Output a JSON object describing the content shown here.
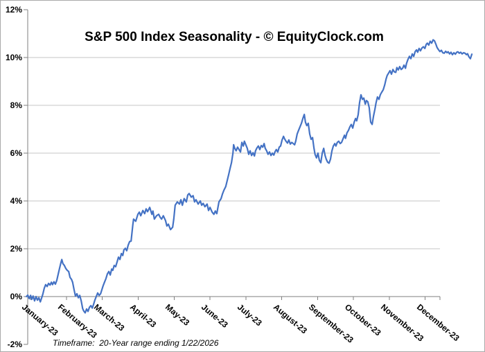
{
  "chart_data": {
    "type": "line",
    "title": "S&P 500 Index Seasonality - © EquityClock.com",
    "footnote": "Timeframe:  20-Year range ending 1/22/2026",
    "y_axis": {
      "unit": "%",
      "min": -2,
      "max": 12,
      "step": 2,
      "tick_labels": [
        "12%",
        "10%",
        "8%",
        "6%",
        "4%",
        "2%",
        "0%",
        "-2%"
      ],
      "gridline_levels": [
        10,
        8,
        6,
        4,
        2
      ],
      "grid": "horizontal only"
    },
    "x_axis": {
      "unit": "months since start of January-23 (data runs ~0 to 12.3)",
      "tick_labels": [
        "January-23",
        "February-23",
        "March-23",
        "April-23",
        "May-23",
        "June-23",
        "July-23",
        "August-23",
        "September-23",
        "October-23",
        "November-23",
        "December-23"
      ],
      "label_rotation_deg": 40,
      "axis_cross_level": 0
    },
    "legend": "none",
    "series": [
      {
        "color": "#4472C4",
        "x_unit": "months",
        "y_unit": "percent",
        "points": [
          [
            -0.12,
            0.0
          ],
          [
            -0.08,
            0.06
          ],
          [
            -0.04,
            -0.08
          ],
          [
            0.0,
            0.05
          ],
          [
            0.03,
            -0.12
          ],
          [
            0.07,
            0.02
          ],
          [
            0.11,
            -0.18
          ],
          [
            0.15,
            0.0
          ],
          [
            0.19,
            -0.15
          ],
          [
            0.23,
            -0.05
          ],
          [
            0.27,
            -0.22
          ],
          [
            0.31,
            -0.05
          ],
          [
            0.34,
            0.1
          ],
          [
            0.38,
            0.35
          ],
          [
            0.42,
            0.5
          ],
          [
            0.46,
            0.42
          ],
          [
            0.5,
            0.55
          ],
          [
            0.54,
            0.48
          ],
          [
            0.58,
            0.6
          ],
          [
            0.61,
            0.5
          ],
          [
            0.65,
            0.62
          ],
          [
            0.69,
            0.52
          ],
          [
            0.73,
            0.68
          ],
          [
            0.77,
            0.95
          ],
          [
            0.81,
            1.2
          ],
          [
            0.85,
            1.45
          ],
          [
            0.87,
            1.55
          ],
          [
            0.9,
            1.38
          ],
          [
            0.94,
            1.3
          ],
          [
            0.98,
            1.18
          ],
          [
            1.02,
            1.1
          ],
          [
            1.06,
            1.05
          ],
          [
            1.1,
            0.8
          ],
          [
            1.14,
            0.72
          ],
          [
            1.17,
            0.6
          ],
          [
            1.21,
            0.3
          ],
          [
            1.25,
            0.02
          ],
          [
            1.29,
            0.12
          ],
          [
            1.33,
            -0.05
          ],
          [
            1.37,
            0.05
          ],
          [
            1.41,
            -0.18
          ],
          [
            1.45,
            -0.5
          ],
          [
            1.48,
            -0.6
          ],
          [
            1.52,
            -0.68
          ],
          [
            1.56,
            -0.52
          ],
          [
            1.6,
            -0.62
          ],
          [
            1.64,
            -0.45
          ],
          [
            1.68,
            -0.38
          ],
          [
            1.72,
            -0.48
          ],
          [
            1.75,
            -0.35
          ],
          [
            1.79,
            -0.15
          ],
          [
            1.83,
            0.0
          ],
          [
            1.87,
            0.15
          ],
          [
            1.91,
            0.05
          ],
          [
            1.95,
            0.12
          ],
          [
            1.99,
            0.3
          ],
          [
            2.02,
            0.45
          ],
          [
            2.06,
            0.6
          ],
          [
            2.1,
            0.75
          ],
          [
            2.14,
            0.95
          ],
          [
            2.18,
            1.05
          ],
          [
            2.22,
            0.9
          ],
          [
            2.26,
            1.15
          ],
          [
            2.29,
            1.1
          ],
          [
            2.33,
            1.3
          ],
          [
            2.37,
            1.25
          ],
          [
            2.41,
            1.45
          ],
          [
            2.45,
            1.65
          ],
          [
            2.49,
            1.55
          ],
          [
            2.53,
            1.8
          ],
          [
            2.57,
            1.72
          ],
          [
            2.6,
            1.95
          ],
          [
            2.64,
            2.02
          ],
          [
            2.68,
            1.92
          ],
          [
            2.72,
            2.15
          ],
          [
            2.76,
            2.3
          ],
          [
            2.8,
            2.32
          ],
          [
            2.85,
            3.0
          ],
          [
            2.87,
            3.24
          ],
          [
            2.93,
            3.15
          ],
          [
            2.99,
            3.44
          ],
          [
            3.03,
            3.53
          ],
          [
            3.07,
            3.38
          ],
          [
            3.13,
            3.6
          ],
          [
            3.18,
            3.47
          ],
          [
            3.22,
            3.67
          ],
          [
            3.26,
            3.55
          ],
          [
            3.32,
            3.73
          ],
          [
            3.38,
            3.44
          ],
          [
            3.41,
            3.58
          ],
          [
            3.45,
            3.24
          ],
          [
            3.51,
            3.38
          ],
          [
            3.57,
            3.44
          ],
          [
            3.61,
            3.32
          ],
          [
            3.65,
            3.24
          ],
          [
            3.7,
            3.38
          ],
          [
            3.76,
            3.18
          ],
          [
            3.8,
            2.95
          ],
          [
            3.84,
            3.03
          ],
          [
            3.9,
            2.8
          ],
          [
            3.96,
            2.9
          ],
          [
            3.99,
            3.24
          ],
          [
            4.03,
            3.82
          ],
          [
            4.09,
            3.96
          ],
          [
            4.15,
            3.87
          ],
          [
            4.19,
            4.05
          ],
          [
            4.23,
            3.82
          ],
          [
            4.28,
            4.1
          ],
          [
            4.34,
            3.96
          ],
          [
            4.38,
            4.25
          ],
          [
            4.42,
            4.31
          ],
          [
            4.48,
            4.16
          ],
          [
            4.53,
            4.22
          ],
          [
            4.57,
            3.96
          ],
          [
            4.61,
            4.05
          ],
          [
            4.67,
            3.87
          ],
          [
            4.73,
            4.0
          ],
          [
            4.77,
            3.82
          ],
          [
            4.81,
            3.9
          ],
          [
            4.86,
            3.76
          ],
          [
            4.92,
            3.87
          ],
          [
            4.96,
            3.6
          ],
          [
            5.0,
            3.73
          ],
          [
            5.06,
            3.53
          ],
          [
            5.11,
            3.44
          ],
          [
            5.15,
            3.58
          ],
          [
            5.19,
            3.47
          ],
          [
            5.25,
            3.96
          ],
          [
            5.31,
            4.1
          ],
          [
            5.35,
            4.3
          ],
          [
            5.39,
            4.45
          ],
          [
            5.44,
            4.6
          ],
          [
            5.48,
            4.85
          ],
          [
            5.52,
            5.1
          ],
          [
            5.56,
            5.35
          ],
          [
            5.6,
            5.6
          ],
          [
            5.64,
            6.0
          ],
          [
            5.66,
            6.35
          ],
          [
            5.69,
            6.2
          ],
          [
            5.73,
            6.1
          ],
          [
            5.77,
            6.25
          ],
          [
            5.81,
            6.15
          ],
          [
            5.85,
            6.05
          ],
          [
            5.89,
            6.45
          ],
          [
            5.93,
            6.3
          ],
          [
            5.96,
            6.5
          ],
          [
            6.0,
            6.35
          ],
          [
            6.04,
            6.2
          ],
          [
            6.08,
            5.95
          ],
          [
            6.12,
            6.1
          ],
          [
            6.16,
            5.9
          ],
          [
            6.2,
            6.02
          ],
          [
            6.24,
            5.88
          ],
          [
            6.27,
            6.1
          ],
          [
            6.31,
            6.22
          ],
          [
            6.35,
            6.3
          ],
          [
            6.39,
            6.15
          ],
          [
            6.43,
            6.32
          ],
          [
            6.47,
            6.25
          ],
          [
            6.51,
            6.4
          ],
          [
            6.54,
            6.2
          ],
          [
            6.58,
            6.1
          ],
          [
            6.62,
            5.95
          ],
          [
            6.66,
            6.05
          ],
          [
            6.7,
            5.9
          ],
          [
            6.74,
            6.0
          ],
          [
            6.78,
            5.92
          ],
          [
            6.81,
            6.05
          ],
          [
            6.85,
            6.15
          ],
          [
            6.89,
            6.05
          ],
          [
            6.93,
            6.25
          ],
          [
            6.97,
            6.3
          ],
          [
            7.01,
            6.55
          ],
          [
            7.05,
            6.7
          ],
          [
            7.08,
            6.6
          ],
          [
            7.12,
            6.5
          ],
          [
            7.16,
            6.42
          ],
          [
            7.2,
            6.55
          ],
          [
            7.24,
            6.38
          ],
          [
            7.28,
            6.45
          ],
          [
            7.32,
            6.4
          ],
          [
            7.36,
            6.35
          ],
          [
            7.39,
            6.5
          ],
          [
            7.43,
            6.8
          ],
          [
            7.47,
            6.95
          ],
          [
            7.51,
            7.1
          ],
          [
            7.55,
            7.25
          ],
          [
            7.59,
            7.45
          ],
          [
            7.63,
            7.62
          ],
          [
            7.66,
            7.3
          ],
          [
            7.7,
            7.15
          ],
          [
            7.74,
            7.25
          ],
          [
            7.78,
            6.8
          ],
          [
            7.82,
            6.58
          ],
          [
            7.86,
            6.65
          ],
          [
            7.9,
            6.2
          ],
          [
            7.93,
            5.95
          ],
          [
            7.97,
            5.8
          ],
          [
            8.01,
            6.0
          ],
          [
            8.05,
            5.7
          ],
          [
            8.09,
            5.6
          ],
          [
            8.13,
            6.0
          ],
          [
            8.17,
            6.2
          ],
          [
            8.21,
            5.9
          ],
          [
            8.24,
            5.75
          ],
          [
            8.28,
            5.62
          ],
          [
            8.32,
            5.58
          ],
          [
            8.36,
            5.75
          ],
          [
            8.4,
            6.1
          ],
          [
            8.44,
            6.3
          ],
          [
            8.48,
            6.4
          ],
          [
            8.51,
            6.3
          ],
          [
            8.55,
            6.45
          ],
          [
            8.59,
            6.5
          ],
          [
            8.63,
            6.4
          ],
          [
            8.67,
            6.45
          ],
          [
            8.71,
            6.6
          ],
          [
            8.75,
            6.75
          ],
          [
            8.78,
            6.62
          ],
          [
            8.82,
            6.85
          ],
          [
            8.86,
            6.95
          ],
          [
            8.9,
            7.1
          ],
          [
            8.94,
            7.2
          ],
          [
            8.98,
            7.05
          ],
          [
            9.02,
            7.3
          ],
          [
            9.06,
            7.45
          ],
          [
            9.09,
            7.35
          ],
          [
            9.13,
            7.6
          ],
          [
            9.17,
            8.1
          ],
          [
            9.21,
            8.44
          ],
          [
            9.25,
            8.25
          ],
          [
            9.29,
            8.3
          ],
          [
            9.33,
            8.05
          ],
          [
            9.36,
            8.2
          ],
          [
            9.4,
            8.15
          ],
          [
            9.44,
            7.9
          ],
          [
            9.48,
            7.3
          ],
          [
            9.52,
            7.2
          ],
          [
            9.56,
            7.55
          ],
          [
            9.6,
            7.85
          ],
          [
            9.63,
            8.1
          ],
          [
            9.67,
            8.35
          ],
          [
            9.71,
            8.25
          ],
          [
            9.75,
            8.45
          ],
          [
            9.79,
            8.55
          ],
          [
            9.83,
            8.65
          ],
          [
            9.87,
            8.85
          ],
          [
            9.91,
            9.1
          ],
          [
            9.94,
            9.25
          ],
          [
            9.98,
            9.35
          ],
          [
            10.02,
            9.45
          ],
          [
            10.06,
            9.3
          ],
          [
            10.1,
            9.5
          ],
          [
            10.14,
            9.4
          ],
          [
            10.18,
            9.38
          ],
          [
            10.21,
            9.58
          ],
          [
            10.25,
            9.48
          ],
          [
            10.29,
            9.62
          ],
          [
            10.33,
            9.5
          ],
          [
            10.37,
            9.55
          ],
          [
            10.41,
            9.68
          ],
          [
            10.45,
            9.55
          ],
          [
            10.48,
            9.75
          ],
          [
            10.52,
            9.92
          ],
          [
            10.56,
            10.05
          ],
          [
            10.6,
            9.95
          ],
          [
            10.64,
            10.15
          ],
          [
            10.68,
            10.05
          ],
          [
            10.72,
            10.25
          ],
          [
            10.76,
            10.32
          ],
          [
            10.79,
            10.22
          ],
          [
            10.83,
            10.38
          ],
          [
            10.87,
            10.28
          ],
          [
            10.91,
            10.4
          ],
          [
            10.95,
            10.45
          ],
          [
            10.99,
            10.38
          ],
          [
            11.03,
            10.55
          ],
          [
            11.06,
            10.6
          ],
          [
            11.1,
            10.52
          ],
          [
            11.14,
            10.68
          ],
          [
            11.18,
            10.6
          ],
          [
            11.22,
            10.74
          ],
          [
            11.26,
            10.7
          ],
          [
            11.3,
            10.55
          ],
          [
            11.33,
            10.42
          ],
          [
            11.37,
            10.33
          ],
          [
            11.41,
            10.25
          ],
          [
            11.45,
            10.3
          ],
          [
            11.49,
            10.2
          ],
          [
            11.53,
            10.18
          ],
          [
            11.57,
            10.26
          ],
          [
            11.61,
            10.2
          ],
          [
            11.64,
            10.24
          ],
          [
            11.68,
            10.15
          ],
          [
            11.72,
            10.22
          ],
          [
            11.76,
            10.12
          ],
          [
            11.8,
            10.2
          ],
          [
            11.84,
            10.14
          ],
          [
            11.88,
            10.22
          ],
          [
            11.91,
            10.24
          ],
          [
            11.95,
            10.18
          ],
          [
            11.99,
            10.22
          ],
          [
            12.03,
            10.15
          ],
          [
            12.07,
            10.2
          ],
          [
            12.11,
            10.18
          ],
          [
            12.15,
            10.12
          ],
          [
            12.18,
            10.16
          ],
          [
            12.22,
            10.03
          ],
          [
            12.26,
            9.95
          ],
          [
            12.3,
            10.14
          ]
        ]
      }
    ]
  },
  "colors": {
    "line": "#4472C4",
    "gridline": "#c6c6c6",
    "axis": "#7f7f7f",
    "text": "#000000",
    "background": "#ffffff",
    "border": "#a9a9a9"
  }
}
